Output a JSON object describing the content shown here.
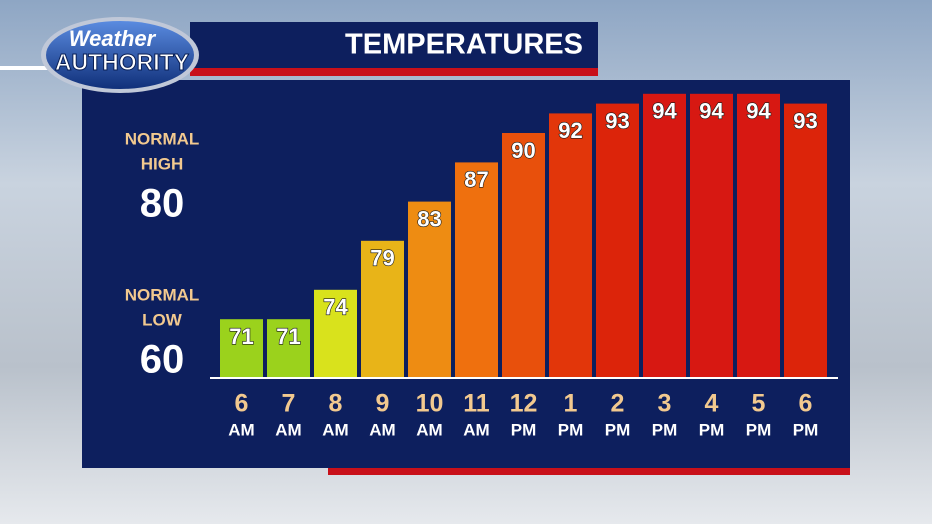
{
  "chart_data": {
    "type": "bar",
    "title": "TEMPERATURES",
    "logo": {
      "top": "Weather",
      "bottom": "AUTHORITY"
    },
    "normals": [
      {
        "label": [
          "NORMAL",
          "HIGH"
        ],
        "value": 80
      },
      {
        "label": [
          "NORMAL",
          "LOW"
        ],
        "value": 60
      }
    ],
    "categories": [
      {
        "hour": "6",
        "period": "AM"
      },
      {
        "hour": "7",
        "period": "AM"
      },
      {
        "hour": "8",
        "period": "AM"
      },
      {
        "hour": "9",
        "period": "AM"
      },
      {
        "hour": "10",
        "period": "AM"
      },
      {
        "hour": "11",
        "period": "AM"
      },
      {
        "hour": "12",
        "period": "PM"
      },
      {
        "hour": "1",
        "period": "PM"
      },
      {
        "hour": "2",
        "period": "PM"
      },
      {
        "hour": "3",
        "period": "PM"
      },
      {
        "hour": "4",
        "period": "PM"
      },
      {
        "hour": "5",
        "period": "PM"
      },
      {
        "hour": "6",
        "period": "PM"
      }
    ],
    "values": [
      71,
      71,
      74,
      79,
      83,
      87,
      90,
      92,
      93,
      94,
      94,
      94,
      93
    ],
    "colors": [
      "#9bd21c",
      "#9bd21c",
      "#d9e21c",
      "#e8b418",
      "#ee8c12",
      "#ef700e",
      "#e8500c",
      "#e2360a",
      "#dc240a",
      "#d71812",
      "#d71812",
      "#d71812",
      "#dc240a"
    ],
    "ylim": [
      65,
      95
    ]
  }
}
